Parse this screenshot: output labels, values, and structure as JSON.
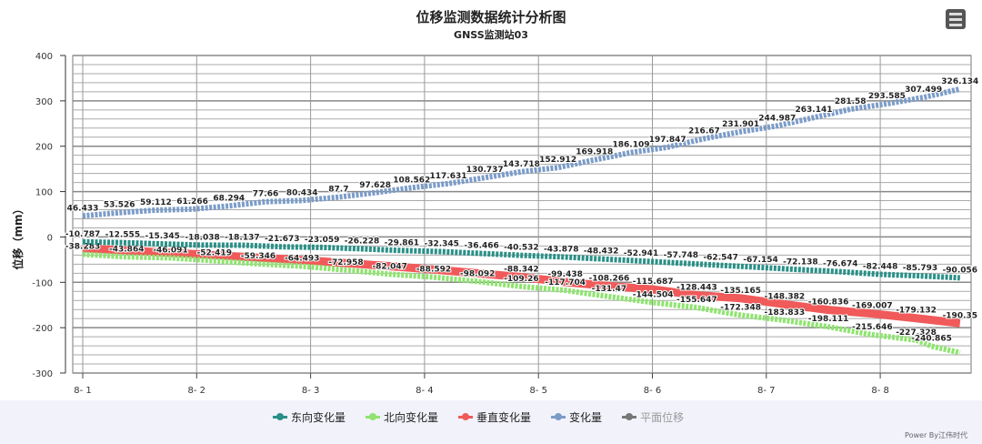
{
  "chart_data": {
    "type": "line",
    "title": "位移监测数据统计分析图",
    "subtitle": "GNSS监测站03",
    "ylabel": "位移（mm）",
    "xlabel": "",
    "ylim": [
      -300,
      400
    ],
    "yticks": [
      "400",
      "300",
      "200",
      "100",
      "0",
      "-100",
      "-200",
      "-300"
    ],
    "ytick_values": [
      400,
      300,
      200,
      100,
      0,
      -100,
      -200,
      -300
    ],
    "xticks": [
      "8- 1",
      "8- 2",
      "8- 3",
      "8- 4",
      "8- 5",
      "8- 6",
      "8- 7",
      "8- 8"
    ],
    "xlim_days": [
      0.9,
      8.85
    ],
    "grid": true,
    "legend_position": "bottom",
    "series": [
      {
        "name": "东向变化量",
        "color": "#2a9087",
        "marker": "circle",
        "start": 1.0,
        "end": 8.7,
        "values": [
          -10.787,
          -12.555,
          -15.345,
          -18.038,
          -18.137,
          -21.673,
          -23.059,
          -26.228,
          -29.861,
          -32.345,
          -36.466,
          -40.532,
          -43.878,
          -48.432,
          -52.941,
          -57.748,
          -62.547,
          -67.154,
          -72.138,
          -76.674,
          -82.448,
          -85.793,
          -90.056
        ]
      },
      {
        "name": "北向变化量",
        "color": "#8ee46f",
        "marker": "diamond",
        "start": 1.0,
        "end": 8.7,
        "values": [
          -38.283,
          -43.864,
          -46.091,
          -52.419,
          -59.346,
          -64.493,
          -72.958,
          -82.047,
          -88.592,
          -98.092,
          -109.26,
          -117.704,
          -131.47,
          -144.504,
          -155.647,
          -172.348,
          -183.833,
          -198.111,
          -215.646,
          -227.328,
          -240.865
        ]
      },
      {
        "name": "垂直变化量",
        "color": "#f05a5a",
        "marker": "square",
        "start": 4.85,
        "end": 8.7,
        "values": [
          -88.342,
          -99.438,
          -108.266,
          -115.687,
          -128.443,
          -135.165,
          -148.382,
          -160.836,
          -169.007,
          -179.132,
          -190.35
        ]
      },
      {
        "name": "变化量",
        "color": "#7b9cc8",
        "marker": "triangle",
        "start": 1.0,
        "end": 8.7,
        "values": [
          46.433,
          53.526,
          59.112,
          61.266,
          68.294,
          77.66,
          80.434,
          87.7,
          97.628,
          108.562,
          117.631,
          130.737,
          143.718,
          152.912,
          169.918,
          186.109,
          197.847,
          216.67,
          231.901,
          244.987,
          263.141,
          281.58,
          293.585,
          307.499,
          326.134
        ]
      },
      {
        "name": "平面位移",
        "color": "#777777",
        "marker": "triangle-down",
        "hidden": true,
        "values": []
      }
    ]
  },
  "credit": "Power By江伟时代",
  "menu_icon": "hamburger-menu-icon"
}
